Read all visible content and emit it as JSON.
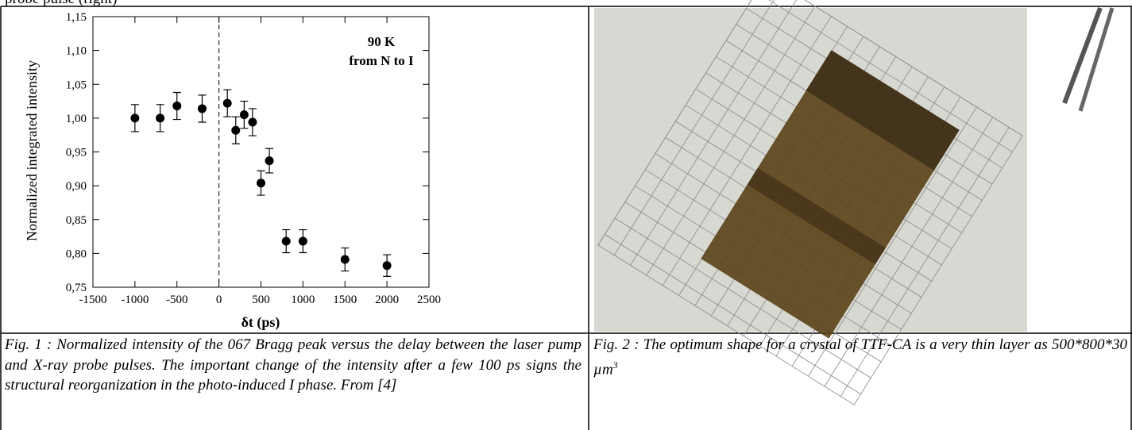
{
  "header_fragment": "probe pulse (right)",
  "chart_data": {
    "type": "scatter",
    "ylabel": "Normalized integrated intensity",
    "xlabel": "δt (ps)",
    "annotations": [
      "90 K",
      "from N to I"
    ],
    "x": [
      -1000,
      -700,
      -500,
      -200,
      100,
      200,
      300,
      400,
      500,
      600,
      800,
      1000,
      1500,
      2000
    ],
    "values": [
      1.0,
      1.0,
      1.018,
      1.014,
      1.022,
      0.982,
      1.005,
      0.994,
      0.904,
      0.937,
      0.818,
      0.818,
      0.791,
      0.782
    ],
    "errors": [
      0.02,
      0.02,
      0.02,
      0.02,
      0.02,
      0.02,
      0.02,
      0.02,
      0.018,
      0.018,
      0.017,
      0.017,
      0.017,
      0.016
    ],
    "color": "#000000",
    "xlim": [
      -1500,
      2500
    ],
    "xticks": [
      -1500,
      -1000,
      -500,
      0,
      500,
      1000,
      1500,
      2000,
      2500
    ],
    "ylim": [
      0.75,
      1.15
    ],
    "yticks": [
      {
        "value": 0.75,
        "label": "0,75"
      },
      {
        "value": 0.8,
        "label": "0,80"
      },
      {
        "value": 0.85,
        "label": "0,85"
      },
      {
        "value": 0.9,
        "label": "0,90"
      },
      {
        "value": 0.95,
        "label": "0,95"
      },
      {
        "value": 1.0,
        "label": "1,00"
      },
      {
        "value": 1.05,
        "label": "1,05"
      },
      {
        "value": 1.1,
        "label": "1,10"
      },
      {
        "value": 1.15,
        "label": "1,15"
      }
    ],
    "grid": false
  },
  "captions": [
    "Fig. 1 : Normalized intensity of the 067 Bragg peak versus the delay between the laser pump and X-ray probe pulses. The important change of the intensity after a few 100 ps signs the structural reorganization in the photo-induced I phase. From [4]",
    "Fig. 2 : The optimum shape for a crystal of TTF-CA is a very thin layer as 500*800*30 µm"
  ],
  "caption_superscript": "3"
}
